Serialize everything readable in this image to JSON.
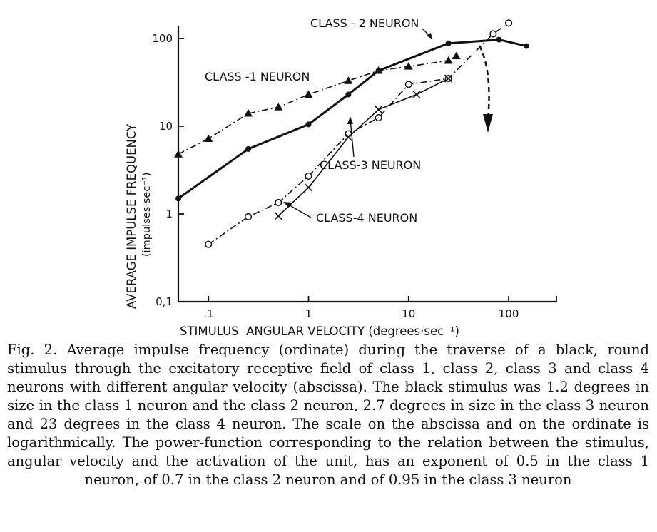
{
  "chart_data": {
    "type": "line",
    "scale": {
      "x": "log",
      "y": "log"
    },
    "xlim": [
      0.05,
      300
    ],
    "ylim": [
      0.1,
      140
    ],
    "xlabel": "STIMULUS  ANGULAR VELOCITY (degrees·sec⁻¹)",
    "ylabel": "AVERAGE IMPULSE FREQUENCY",
    "ylabel_units": "(impulses·sec⁻¹)",
    "x_ticks": [
      {
        "value": 0.1,
        "label": ".1"
      },
      {
        "value": 1,
        "label": "1"
      },
      {
        "value": 10,
        "label": "10"
      },
      {
        "value": 100,
        "label": "100"
      }
    ],
    "y_ticks": [
      {
        "value": 0.1,
        "label": "0,1"
      },
      {
        "value": 1,
        "label": "1"
      },
      {
        "value": 10,
        "label": "10"
      },
      {
        "value": 100,
        "label": "100"
      }
    ],
    "series": [
      {
        "name": "CLASS -1 NEURON",
        "marker": "triangle",
        "line": "dashdot",
        "points": [
          [
            0.05,
            4.8
          ],
          [
            0.1,
            7.2
          ],
          [
            0.25,
            14
          ],
          [
            0.5,
            16.5
          ],
          [
            1,
            23
          ],
          [
            2.5,
            33
          ],
          [
            5,
            43
          ],
          [
            10,
            48
          ],
          [
            25,
            56
          ],
          [
            30,
            63
          ]
        ]
      },
      {
        "name": "CLASS - 2 NEURON",
        "marker": "dot",
        "line": "solid-bold",
        "points": [
          [
            0.05,
            1.5
          ],
          [
            0.25,
            5.5
          ],
          [
            1,
            10.5
          ],
          [
            2.5,
            23
          ],
          [
            5,
            43
          ],
          [
            25,
            88
          ],
          [
            80,
            97
          ],
          [
            150,
            82
          ]
        ]
      },
      {
        "name": "CLASS-3 NEURON",
        "marker": "circle",
        "line": "dashdot",
        "points": [
          [
            0.1,
            0.45
          ],
          [
            0.25,
            0.93
          ],
          [
            0.5,
            1.35
          ],
          [
            1,
            2.7
          ],
          [
            2.5,
            8.2
          ],
          [
            5,
            12.5
          ],
          [
            10,
            30
          ],
          [
            25,
            35
          ],
          [
            70,
            113
          ],
          [
            100,
            150
          ]
        ]
      },
      {
        "name": "CLASS-4 NEURON",
        "marker": "cross",
        "line": "solid",
        "points": [
          [
            0.5,
            0.95
          ],
          [
            1,
            2
          ],
          [
            2.5,
            7.5
          ],
          [
            5,
            15.5
          ],
          [
            12,
            23
          ],
          [
            25,
            35
          ]
        ]
      }
    ],
    "annotations": [
      {
        "text": "CLASS - 2 NEURON"
      },
      {
        "text": "CLASS -1 NEURON"
      },
      {
        "text": "CLASS-3 NEURON"
      },
      {
        "text": "CLASS-4 NEURON"
      }
    ]
  },
  "caption": {
    "figure_number": "Fig. 2.",
    "text": "Average impulse frequency (ordinate) during the traverse of a black, round stimulus through the excitatory receptive field of class 1, class 2, class 3 and class 4 neurons with different angular velocity (abscissa). The black stimulus was 1.2 degrees in size in the class 1 neuron and the class 2 neuron, 2.7 degrees in size in the class 3 neuron and 23 degrees in the class 4 neuron. The scale on the abscissa and on the ordinate is logarithmically. The power-function corresponding to the relation between the stimulus, angular velocity and the activation of the unit, has an exponent of 0.5 in the class 1 neuron, of 0.7 in the class 2 neuron and of 0.95 in the class 3 neuron"
  }
}
